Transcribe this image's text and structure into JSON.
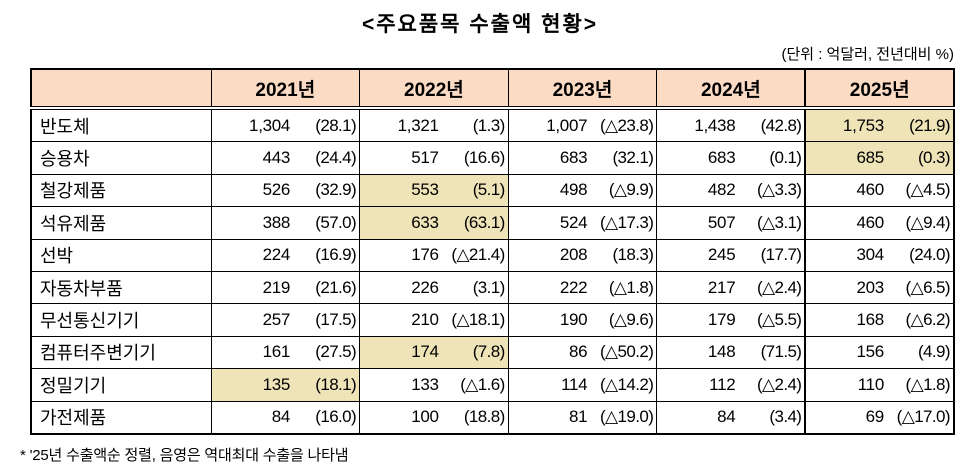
{
  "title": "<주요품목 수출액 현황>",
  "unit_note": "(단위 : 억달러, 전년대비 %)",
  "footnote": "* '25년 수출액순 정렬, 음영은 역대최대 수출을 나타냄",
  "colors": {
    "header_bg": "#FCDBC5",
    "record_bg": "#EFE3B8",
    "border": "#000000"
  },
  "table": {
    "year_headers": [
      "2021년",
      "2022년",
      "2023년",
      "2024년",
      "2025년"
    ],
    "rows": [
      {
        "item": "반도체",
        "cells": [
          {
            "value": "1,304",
            "change": "(28.1)",
            "record": false
          },
          {
            "value": "1,321",
            "change": "(1.3)",
            "record": false
          },
          {
            "value": "1,007",
            "change": "(△23.8)",
            "record": false
          },
          {
            "value": "1,438",
            "change": "(42.8)",
            "record": false
          },
          {
            "value": "1,753",
            "change": "(21.9)",
            "record": true
          }
        ]
      },
      {
        "item": "승용차",
        "cells": [
          {
            "value": "443",
            "change": "(24.4)",
            "record": false
          },
          {
            "value": "517",
            "change": "(16.6)",
            "record": false
          },
          {
            "value": "683",
            "change": "(32.1)",
            "record": false
          },
          {
            "value": "683",
            "change": "(0.1)",
            "record": false
          },
          {
            "value": "685",
            "change": "(0.3)",
            "record": true
          }
        ]
      },
      {
        "item": "철강제품",
        "cells": [
          {
            "value": "526",
            "change": "(32.9)",
            "record": false
          },
          {
            "value": "553",
            "change": "(5.1)",
            "record": true
          },
          {
            "value": "498",
            "change": "(△9.9)",
            "record": false
          },
          {
            "value": "482",
            "change": "(△3.3)",
            "record": false
          },
          {
            "value": "460",
            "change": "(△4.5)",
            "record": false
          }
        ]
      },
      {
        "item": "석유제품",
        "cells": [
          {
            "value": "388",
            "change": "(57.0)",
            "record": false
          },
          {
            "value": "633",
            "change": "(63.1)",
            "record": true
          },
          {
            "value": "524",
            "change": "(△17.3)",
            "record": false
          },
          {
            "value": "507",
            "change": "(△3.1)",
            "record": false
          },
          {
            "value": "460",
            "change": "(△9.4)",
            "record": false
          }
        ]
      },
      {
        "item": "선박",
        "cells": [
          {
            "value": "224",
            "change": "(16.9)",
            "record": false
          },
          {
            "value": "176",
            "change": "(△21.4)",
            "record": false
          },
          {
            "value": "208",
            "change": "(18.3)",
            "record": false
          },
          {
            "value": "245",
            "change": "(17.7)",
            "record": false
          },
          {
            "value": "304",
            "change": "(24.0)",
            "record": false
          }
        ]
      },
      {
        "item": "자동차부품",
        "cells": [
          {
            "value": "219",
            "change": "(21.6)",
            "record": false
          },
          {
            "value": "226",
            "change": "(3.1)",
            "record": false
          },
          {
            "value": "222",
            "change": "(△1.8)",
            "record": false
          },
          {
            "value": "217",
            "change": "(△2.4)",
            "record": false
          },
          {
            "value": "203",
            "change": "(△6.5)",
            "record": false
          }
        ]
      },
      {
        "item": "무선통신기기",
        "cells": [
          {
            "value": "257",
            "change": "(17.5)",
            "record": false
          },
          {
            "value": "210",
            "change": "(△18.1)",
            "record": false
          },
          {
            "value": "190",
            "change": "(△9.6)",
            "record": false
          },
          {
            "value": "179",
            "change": "(△5.5)",
            "record": false
          },
          {
            "value": "168",
            "change": "(△6.2)",
            "record": false
          }
        ]
      },
      {
        "item": "컴퓨터주변기기",
        "cells": [
          {
            "value": "161",
            "change": "(27.5)",
            "record": false
          },
          {
            "value": "174",
            "change": "(7.8)",
            "record": true
          },
          {
            "value": "86",
            "change": "(△50.2)",
            "record": false
          },
          {
            "value": "148",
            "change": "(71.5)",
            "record": false
          },
          {
            "value": "156",
            "change": "(4.9)",
            "record": false
          }
        ]
      },
      {
        "item": "정밀기기",
        "cells": [
          {
            "value": "135",
            "change": "(18.1)",
            "record": true
          },
          {
            "value": "133",
            "change": "(△1.6)",
            "record": false
          },
          {
            "value": "114",
            "change": "(△14.2)",
            "record": false
          },
          {
            "value": "112",
            "change": "(△2.4)",
            "record": false
          },
          {
            "value": "110",
            "change": "(△1.8)",
            "record": false
          }
        ]
      },
      {
        "item": "가전제품",
        "cells": [
          {
            "value": "84",
            "change": "(16.0)",
            "record": false
          },
          {
            "value": "100",
            "change": "(18.8)",
            "record": false
          },
          {
            "value": "81",
            "change": "(△19.0)",
            "record": false
          },
          {
            "value": "84",
            "change": "(3.4)",
            "record": false
          },
          {
            "value": "69",
            "change": "(△17.0)",
            "record": false
          }
        ]
      }
    ]
  }
}
